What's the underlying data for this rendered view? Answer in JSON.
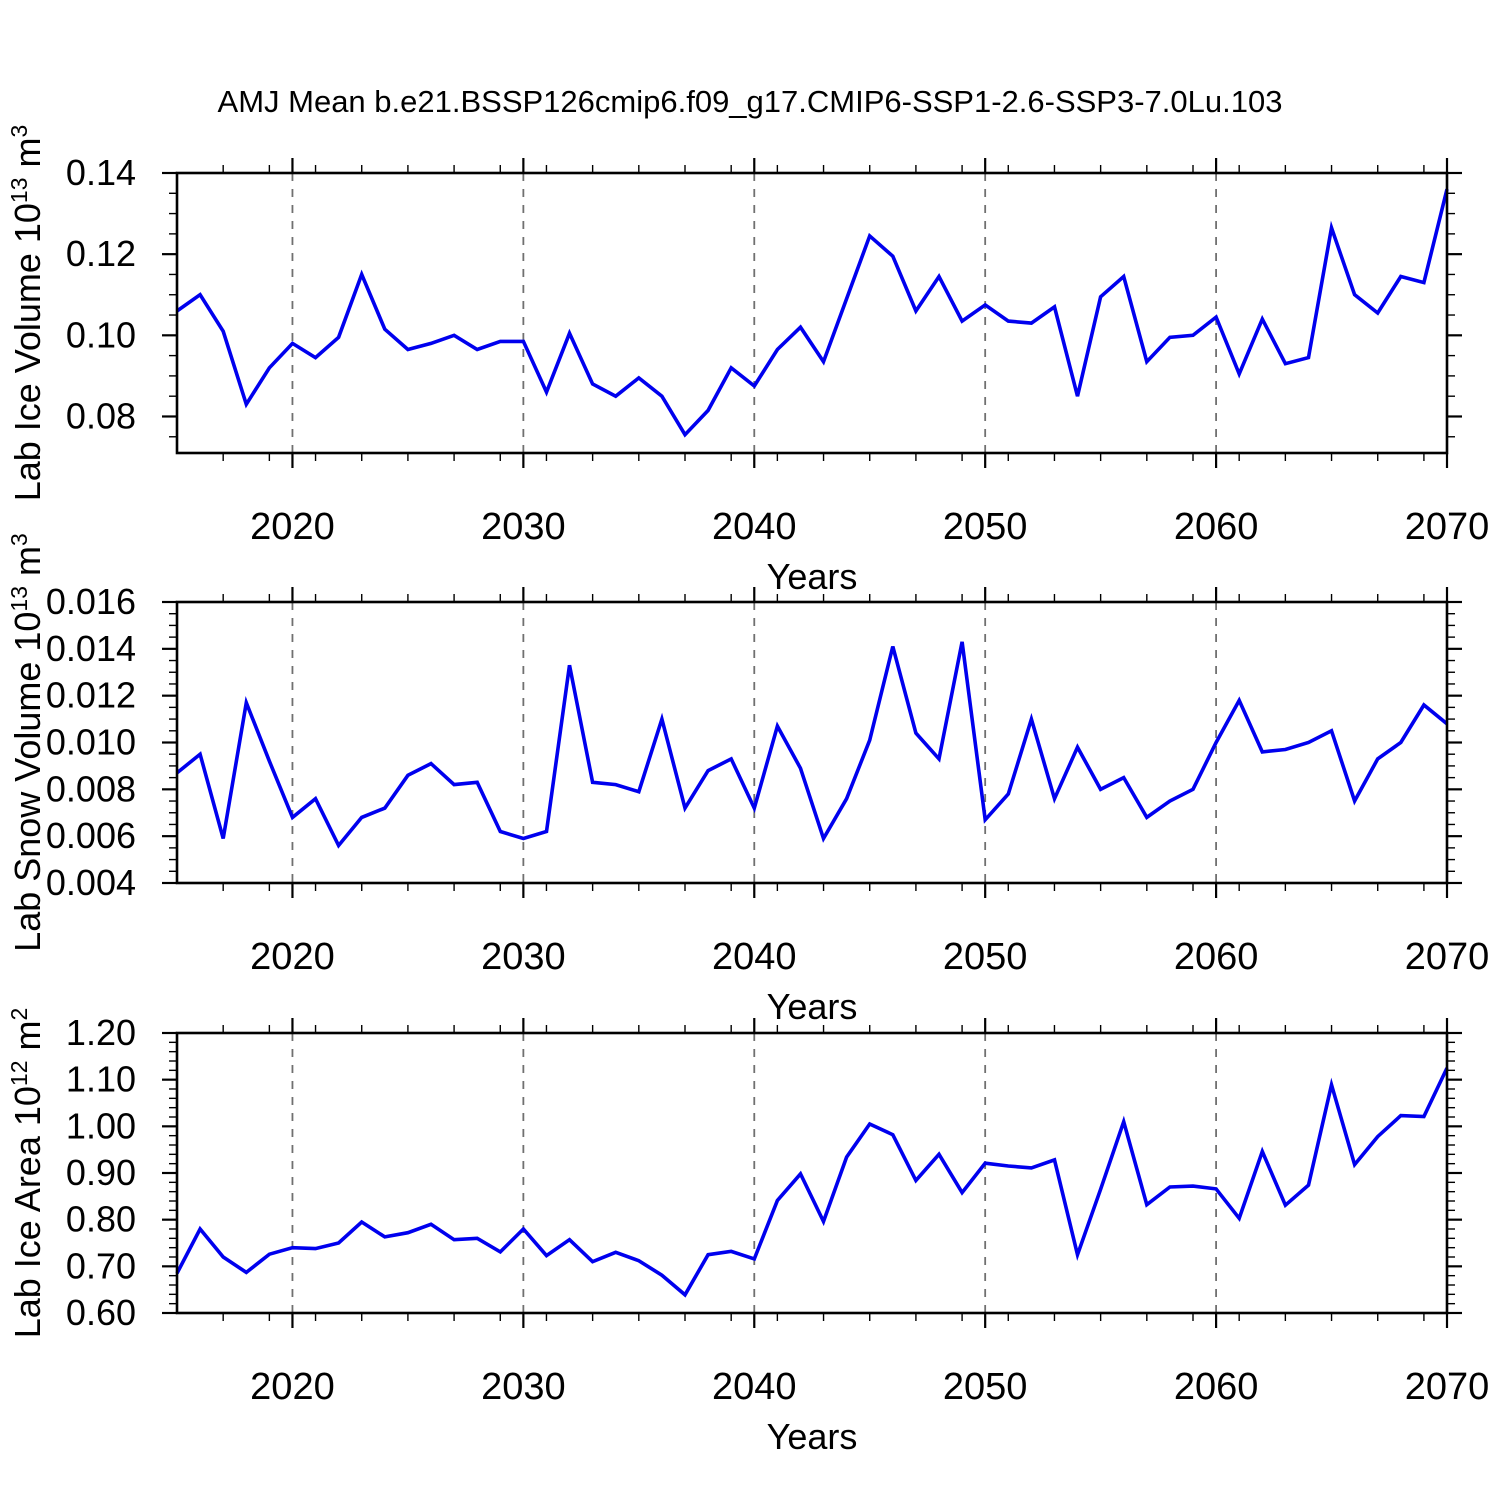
{
  "page": {
    "background": "#ffffff"
  },
  "chart_data": {
    "type": "line",
    "title": "AMJ Mean b.e21.BSSP126cmip6.f09_g17.CMIP6-SSP1-2.6-SSP3-7.0Lu.103",
    "xlabel": "Years",
    "xlim": [
      2015,
      2070
    ],
    "xticks": [
      2020,
      2030,
      2040,
      2050,
      2060,
      2070
    ],
    "xtick_labels": [
      "2020",
      "2030",
      "2040",
      "2050",
      "2060",
      "2070"
    ],
    "x_minor_step": 2,
    "grid_x_dashed": [
      2020,
      2030,
      2040,
      2050,
      2060
    ],
    "line_color": "#0000ee",
    "grid_color": "#707070",
    "axis_color": "#000000",
    "years": [
      2015,
      2016,
      2017,
      2018,
      2019,
      2020,
      2021,
      2022,
      2023,
      2024,
      2025,
      2026,
      2027,
      2028,
      2029,
      2030,
      2031,
      2032,
      2033,
      2034,
      2035,
      2036,
      2037,
      2038,
      2039,
      2040,
      2041,
      2042,
      2043,
      2044,
      2045,
      2046,
      2047,
      2048,
      2049,
      2050,
      2051,
      2052,
      2053,
      2054,
      2055,
      2056,
      2057,
      2058,
      2059,
      2060,
      2061,
      2062,
      2063,
      2064,
      2065,
      2066,
      2067,
      2068,
      2069,
      2070
    ],
    "panels": [
      {
        "name": "lab-ice-volume",
        "ylabel": "Lab Ice Volume 10^13 m^3",
        "ylabel_parts": [
          {
            "text": "Lab Ice Volume 10"
          },
          {
            "text": "13",
            "super": true
          },
          {
            "text": " m"
          },
          {
            "text": "3",
            "super": true
          }
        ],
        "ylim": [
          0.071,
          0.14
        ],
        "yticks": [
          0.08,
          0.1,
          0.12,
          0.14
        ],
        "ytick_labels": [
          "0.08",
          "0.10",
          "0.12",
          "0.14"
        ],
        "y_minor_step": 0.005,
        "values": [
          0.106,
          0.11,
          0.101,
          0.083,
          0.092,
          0.098,
          0.0945,
          0.0995,
          0.115,
          0.1015,
          0.0965,
          0.098,
          0.1,
          0.0965,
          0.0985,
          0.0985,
          0.086,
          0.1005,
          0.088,
          0.085,
          0.0895,
          0.085,
          0.0755,
          0.0815,
          0.092,
          0.0875,
          0.0965,
          0.102,
          0.0935,
          0.109,
          0.1245,
          0.1195,
          0.106,
          0.1145,
          0.1035,
          0.1075,
          0.1035,
          0.103,
          0.107,
          0.085,
          0.1095,
          0.1145,
          0.0935,
          0.0995,
          0.1,
          0.1045,
          0.0905,
          0.104,
          0.093,
          0.0945,
          0.1265,
          0.11,
          0.1055,
          0.1145,
          0.113,
          0.136
        ]
      },
      {
        "name": "lab-snow-volume",
        "ylabel": "Lab Snow Volume 10^13 m^3",
        "ylabel_parts": [
          {
            "text": "Lab Snow Volume 10"
          },
          {
            "text": "13",
            "super": true
          },
          {
            "text": " m"
          },
          {
            "text": "3",
            "super": true
          }
        ],
        "ylim": [
          0.004,
          0.016
        ],
        "yticks": [
          0.004,
          0.006,
          0.008,
          0.01,
          0.012,
          0.014,
          0.016
        ],
        "ytick_labels": [
          "0.004",
          "0.006",
          "0.008",
          "0.010",
          "0.012",
          "0.014",
          "0.016"
        ],
        "y_minor_step": 0.0005,
        "values": [
          0.0087,
          0.0095,
          0.0059,
          0.0117,
          0.0092,
          0.0068,
          0.0076,
          0.0056,
          0.0068,
          0.0072,
          0.0086,
          0.0091,
          0.0082,
          0.0083,
          0.0062,
          0.0059,
          0.0062,
          0.0133,
          0.0083,
          0.0082,
          0.0079,
          0.011,
          0.0072,
          0.0088,
          0.0093,
          0.0072,
          0.0107,
          0.0089,
          0.0059,
          0.0076,
          0.0101,
          0.0141,
          0.0104,
          0.0093,
          0.0143,
          0.0067,
          0.0078,
          0.011,
          0.0076,
          0.0098,
          0.008,
          0.0085,
          0.0068,
          0.0075,
          0.008,
          0.01,
          0.0118,
          0.0096,
          0.0097,
          0.01,
          0.0105,
          0.0075,
          0.0093,
          0.01,
          0.0116,
          0.0108
        ]
      },
      {
        "name": "lab-ice-area",
        "ylabel": "Lab Ice Area 10^12 m^2",
        "ylabel_parts": [
          {
            "text": "Lab Ice Area 10"
          },
          {
            "text": "12",
            "super": true
          },
          {
            "text": " m"
          },
          {
            "text": "2",
            "super": true
          }
        ],
        "ylim": [
          0.6,
          1.2
        ],
        "yticks": [
          0.6,
          0.7,
          0.8,
          0.9,
          1.0,
          1.1,
          1.2
        ],
        "ytick_labels": [
          "0.60",
          "0.70",
          "0.80",
          "0.90",
          "1.00",
          "1.10",
          "1.20"
        ],
        "y_minor_step": 0.02,
        "values": [
          0.685,
          0.78,
          0.72,
          0.687,
          0.726,
          0.74,
          0.738,
          0.75,
          0.795,
          0.763,
          0.772,
          0.79,
          0.757,
          0.76,
          0.731,
          0.78,
          0.723,
          0.757,
          0.71,
          0.73,
          0.712,
          0.681,
          0.639,
          0.725,
          0.732,
          0.716,
          0.841,
          0.898,
          0.796,
          0.934,
          1.005,
          0.982,
          0.884,
          0.94,
          0.858,
          0.921,
          0.915,
          0.911,
          0.928,
          0.725,
          0.865,
          1.01,
          0.832,
          0.87,
          0.872,
          0.866,
          0.803,
          0.946,
          0.831,
          0.874,
          1.089,
          0.918,
          0.978,
          1.023,
          1.021,
          1.125
        ]
      }
    ]
  }
}
